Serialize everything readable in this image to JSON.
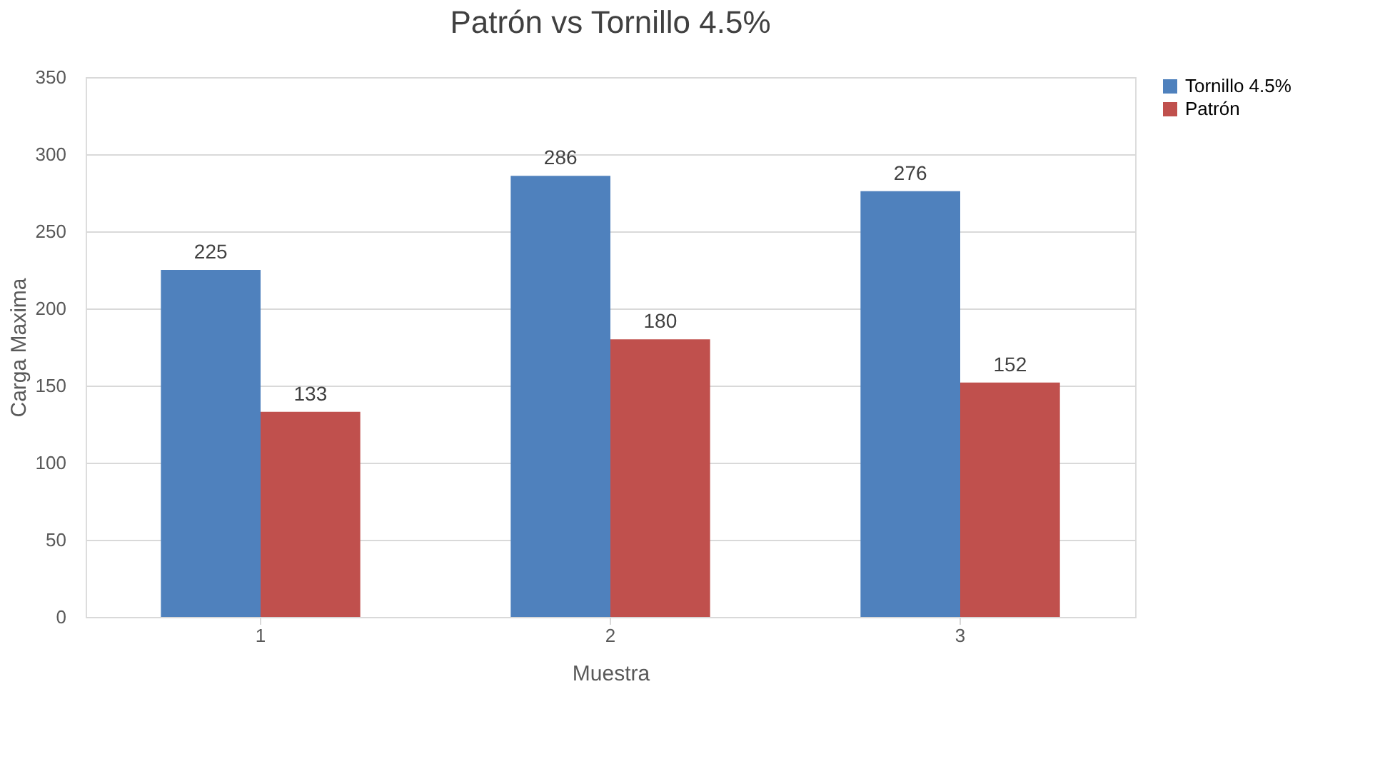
{
  "chart_data": {
    "type": "bar",
    "title": "Patrón vs Tornillo 4.5%",
    "xlabel": "Muestra",
    "ylabel": "Carga Maxima",
    "categories": [
      "1",
      "2",
      "3"
    ],
    "series": [
      {
        "name": "Tornillo 4.5%",
        "color": "#4f81bd",
        "values": [
          225,
          286,
          276
        ]
      },
      {
        "name": "Patrón",
        "color": "#c0504d",
        "values": [
          133,
          180,
          152
        ]
      }
    ],
    "ylim": [
      0,
      350
    ],
    "yticks": [
      0,
      50,
      100,
      150,
      200,
      250,
      300,
      350
    ],
    "grid": "y",
    "legend": "right",
    "data_labels": true
  }
}
